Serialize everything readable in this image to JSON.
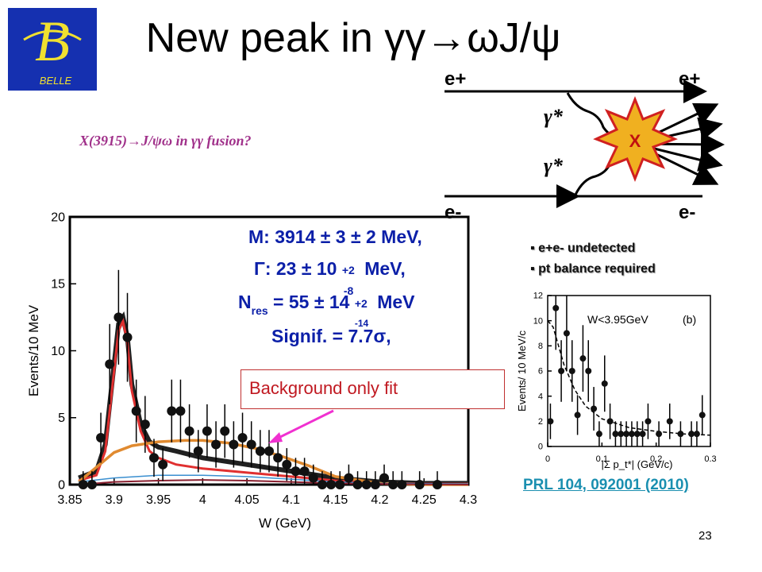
{
  "slide": {
    "title": "New peak in γγ→ωJ/ψ",
    "subtitle": "X(3915)→J/ψω in γγ fusion?",
    "page_number": "23",
    "reference": "PRL 104, 092001 (2010)",
    "logo_text": "BELLE"
  },
  "fit_results": {
    "mass": "M: 3914 ± 3 ± 2 MeV,",
    "width_label": "Γ: 23 ± 10",
    "width_sup": "+2",
    "width_sub": "-8",
    "width_unit": "MeV,",
    "nres_label": "N",
    "nres_sub_label": "res",
    "nres_value": "= 55 ± 14",
    "nres_sup": "+2",
    "nres_sub": "-14",
    "nres_unit": "MeV",
    "signif": "Signif. = 7.7σ,",
    "background_label": "Background only fit"
  },
  "bullets": [
    "e+e- undetected",
    "pt balance required"
  ],
  "diagram": {
    "labels": [
      "e+",
      "e+",
      "γ*",
      "γ*",
      "e-",
      "e-",
      "X"
    ],
    "colors": {
      "burst_fill": "#f0b020",
      "burst_stroke": "#d02020",
      "X_text": "#c01010"
    }
  },
  "chart_data": [
    {
      "type": "scatter",
      "xlabel": "W (GeV)",
      "ylabel": "Events/10 MeV",
      "xlim": [
        3.85,
        4.3
      ],
      "ylim": [
        0,
        20
      ],
      "xticks": [
        "3.85",
        "3.9",
        "3.95",
        "4",
        "4.05",
        "4.1",
        "4.15",
        "4.2",
        "4.25",
        "4.3"
      ],
      "yticks": [
        "0",
        "5",
        "10",
        "15",
        "20"
      ],
      "points": [
        {
          "x": 3.865,
          "y": 0
        },
        {
          "x": 3.875,
          "y": 0
        },
        {
          "x": 3.885,
          "y": 3.5
        },
        {
          "x": 3.895,
          "y": 9
        },
        {
          "x": 3.905,
          "y": 12.5
        },
        {
          "x": 3.915,
          "y": 11
        },
        {
          "x": 3.925,
          "y": 5.5
        },
        {
          "x": 3.935,
          "y": 4.5
        },
        {
          "x": 3.945,
          "y": 2
        },
        {
          "x": 3.955,
          "y": 1.5
        },
        {
          "x": 3.965,
          "y": 5.5
        },
        {
          "x": 3.975,
          "y": 5.5
        },
        {
          "x": 3.985,
          "y": 4
        },
        {
          "x": 3.995,
          "y": 2.5
        },
        {
          "x": 4.005,
          "y": 4
        },
        {
          "x": 4.015,
          "y": 3
        },
        {
          "x": 4.025,
          "y": 4
        },
        {
          "x": 4.035,
          "y": 3
        },
        {
          "x": 4.045,
          "y": 3.5
        },
        {
          "x": 4.055,
          "y": 3
        },
        {
          "x": 4.065,
          "y": 2.5
        },
        {
          "x": 4.075,
          "y": 2.5
        },
        {
          "x": 4.085,
          "y": 2
        },
        {
          "x": 4.095,
          "y": 1.5
        },
        {
          "x": 4.105,
          "y": 1
        },
        {
          "x": 4.115,
          "y": 1
        },
        {
          "x": 4.125,
          "y": 0.5
        },
        {
          "x": 4.135,
          "y": 0
        },
        {
          "x": 4.145,
          "y": 0
        },
        {
          "x": 4.155,
          "y": 0
        },
        {
          "x": 4.165,
          "y": 0.5
        },
        {
          "x": 4.175,
          "y": 0
        },
        {
          "x": 4.185,
          "y": 0
        },
        {
          "x": 4.195,
          "y": 0
        },
        {
          "x": 4.205,
          "y": 0.5
        },
        {
          "x": 4.215,
          "y": 0
        },
        {
          "x": 4.225,
          "y": 0
        },
        {
          "x": 4.245,
          "y": 0
        },
        {
          "x": 4.265,
          "y": 0
        }
      ],
      "series": [
        {
          "name": "",
          "color": "#202020",
          "x": [
            3.86,
            3.88,
            3.89,
            3.9,
            3.905,
            3.91,
            3.915,
            3.92,
            3.93,
            3.94,
            3.95,
            3.97,
            4.0,
            4.05,
            4.1,
            4.15,
            4.2,
            4.25,
            4.3
          ],
          "y": [
            0.5,
            1.0,
            3.0,
            9.0,
            12.0,
            12.5,
            11.0,
            7.5,
            4.5,
            3.2,
            2.8,
            2.5,
            2.0,
            1.5,
            1.0,
            0.5,
            0.2,
            0.1,
            0.1
          ]
        },
        {
          "name": "",
          "color": "#e03030",
          "x": [
            3.86,
            3.88,
            3.89,
            3.9,
            3.905,
            3.91,
            3.915,
            3.92,
            3.93,
            3.94,
            3.95,
            3.97,
            4.0,
            4.05,
            4.1,
            4.15,
            4.2,
            4.25,
            4.3
          ],
          "y": [
            0.3,
            0.7,
            2.5,
            8.5,
            11.5,
            12.2,
            10.6,
            7.0,
            4.0,
            2.5,
            2.0,
            1.5,
            1.2,
            0.9,
            0.6,
            0.3,
            0.1,
            0.05,
            0.05
          ]
        },
        {
          "name": "",
          "color": "#e08a30",
          "x": [
            3.86,
            3.88,
            3.9,
            3.92,
            3.95,
            3.98,
            4.0,
            4.03,
            4.06,
            4.09,
            4.12,
            4.15,
            4.2,
            4.25,
            4.3
          ],
          "y": [
            0.2,
            1.3,
            2.4,
            2.9,
            3.2,
            3.3,
            3.3,
            3.1,
            2.7,
            2.1,
            1.4,
            0.6,
            0.1,
            0,
            0
          ]
        },
        {
          "name": "",
          "color": "#3a8fd0",
          "x": [
            3.86,
            3.9,
            3.95,
            4.0,
            4.05,
            4.1,
            4.15,
            4.2,
            4.3
          ],
          "y": [
            0.2,
            0.5,
            0.7,
            0.7,
            0.6,
            0.4,
            0.2,
            0.1,
            0.05
          ]
        },
        {
          "name": "",
          "color": "#8a2030",
          "x": [
            3.86,
            3.9,
            3.95,
            4.0,
            4.05,
            4.1,
            4.15,
            4.2,
            4.3
          ],
          "y": [
            0.0,
            0.2,
            0.3,
            0.35,
            0.3,
            0.2,
            0.1,
            0.05,
            0
          ]
        }
      ]
    },
    {
      "type": "scatter",
      "xlabel": "|Σ p_t*| (GeV/c)",
      "ylabel": "Events/ 10 MeV/c",
      "annotation_left": "W<3.95GeV",
      "annotation_right": "(b)",
      "xlim": [
        0,
        0.3
      ],
      "ylim": [
        0,
        12
      ],
      "xticks": [
        "0",
        "0.1",
        "0.2",
        "0.3"
      ],
      "yticks": [
        "0",
        "2",
        "4",
        "6",
        "8",
        "10",
        "12"
      ],
      "points": [
        {
          "x": 0.005,
          "y": 2
        },
        {
          "x": 0.015,
          "y": 11
        },
        {
          "x": 0.025,
          "y": 6
        },
        {
          "x": 0.035,
          "y": 9
        },
        {
          "x": 0.045,
          "y": 6
        },
        {
          "x": 0.055,
          "y": 2.5
        },
        {
          "x": 0.065,
          "y": 7
        },
        {
          "x": 0.075,
          "y": 6
        },
        {
          "x": 0.085,
          "y": 3
        },
        {
          "x": 0.095,
          "y": 1
        },
        {
          "x": 0.105,
          "y": 5
        },
        {
          "x": 0.115,
          "y": 2
        },
        {
          "x": 0.125,
          "y": 1
        },
        {
          "x": 0.135,
          "y": 1
        },
        {
          "x": 0.145,
          "y": 1
        },
        {
          "x": 0.155,
          "y": 1
        },
        {
          "x": 0.165,
          "y": 1
        },
        {
          "x": 0.175,
          "y": 1
        },
        {
          "x": 0.185,
          "y": 2
        },
        {
          "x": 0.205,
          "y": 1
        },
        {
          "x": 0.225,
          "y": 2
        },
        {
          "x": 0.245,
          "y": 1
        },
        {
          "x": 0.265,
          "y": 1
        },
        {
          "x": 0.275,
          "y": 1
        },
        {
          "x": 0.285,
          "y": 2.5
        }
      ],
      "series": [
        {
          "name": "",
          "style": "dashed",
          "x": [
            0,
            0.01,
            0.02,
            0.03,
            0.05,
            0.07,
            0.1,
            0.15,
            0.2,
            0.25,
            0.3
          ],
          "y": [
            10,
            9.5,
            8,
            6.5,
            4.5,
            3.2,
            2.2,
            1.5,
            1.2,
            1.0,
            0.9
          ]
        }
      ]
    }
  ]
}
